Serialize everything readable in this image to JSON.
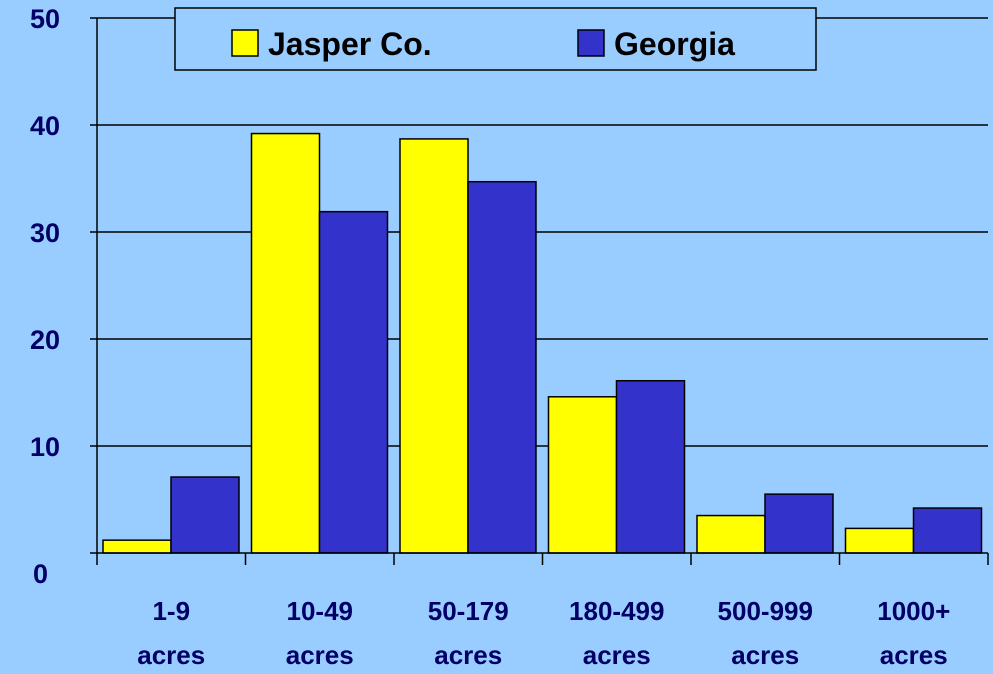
{
  "chart_data": {
    "type": "bar",
    "categories": [
      [
        "1-9",
        "acres"
      ],
      [
        "10-49",
        "acres"
      ],
      [
        "50-179",
        "acres"
      ],
      [
        "180-499",
        "acres"
      ],
      [
        "500-999",
        "acres"
      ],
      [
        "1000+",
        "acres"
      ]
    ],
    "series": [
      {
        "name": "Jasper Co.",
        "color": "#ffff00",
        "values": [
          1.2,
          39.2,
          38.7,
          14.6,
          3.5,
          2.3
        ]
      },
      {
        "name": "Georgia",
        "color": "#3333cc",
        "values": [
          7.1,
          31.9,
          34.7,
          16.1,
          5.5,
          4.2
        ]
      }
    ],
    "ylim": [
      0,
      50
    ],
    "yticks": [
      "0",
      "10",
      "20",
      "30",
      "40",
      "50"
    ],
    "grid": true,
    "legend_position": "top-center",
    "background_color": "#99ccff",
    "text_color": "#000066"
  }
}
